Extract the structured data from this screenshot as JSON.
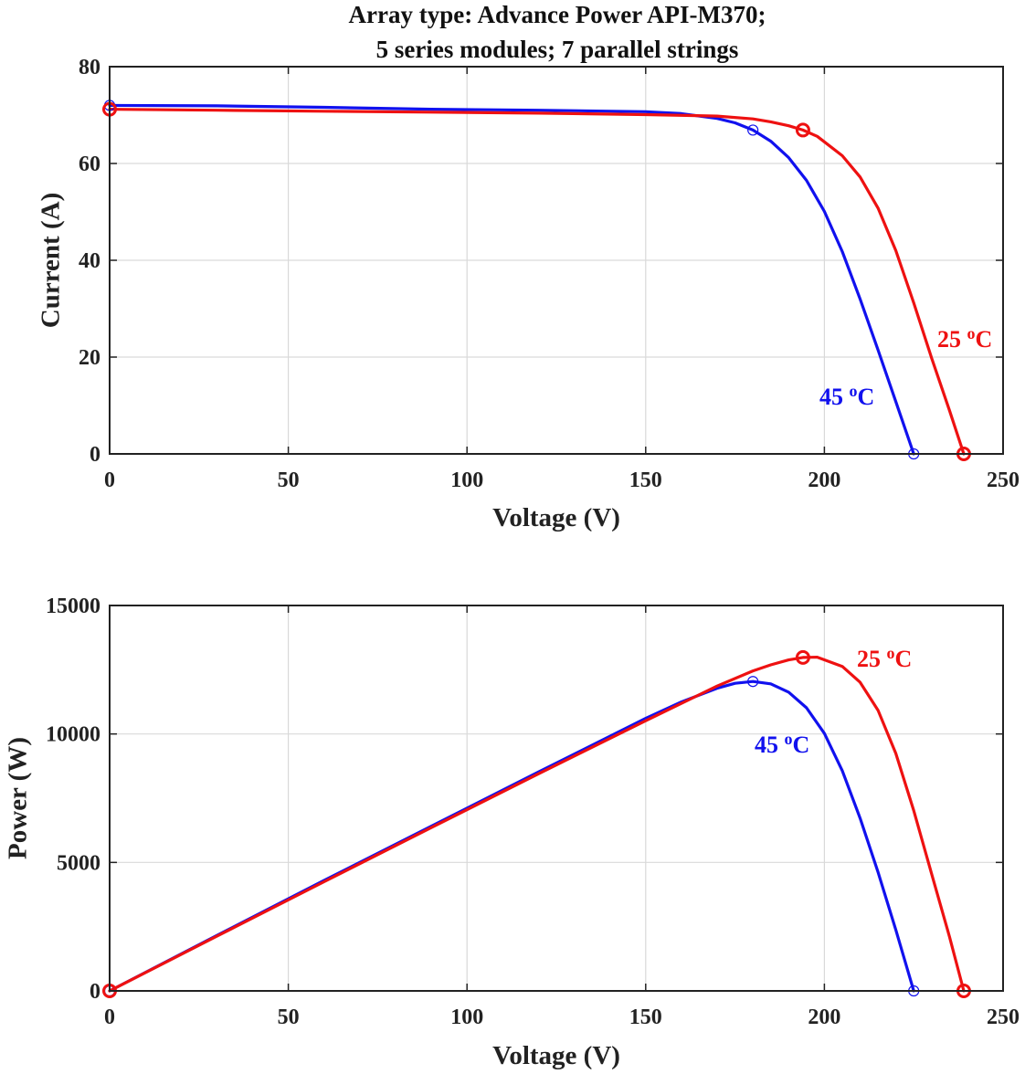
{
  "figure": {
    "title_lines": [
      "Array type: Advance Power API-M370;",
      "5 series modules; 7 parallel strings"
    ]
  },
  "colors": {
    "series_25C": "#ee1111",
    "series_45C": "#1111ee",
    "axes": "#222222",
    "grid": "#d9d9d9"
  },
  "chart_data": [
    {
      "type": "line",
      "title": "Array type: Advance Power API-M370; 5 series modules; 7 parallel strings",
      "xlabel": "Voltage (V)",
      "ylabel": "Current (A)",
      "xlim": [
        0,
        250
      ],
      "ylim": [
        0,
        80
      ],
      "xticks": [
        "0",
        "50",
        "100",
        "150",
        "200",
        "250"
      ],
      "yticks": [
        "0",
        "20",
        "40",
        "60",
        "80"
      ],
      "grid": true,
      "series": [
        {
          "name": "45 °C",
          "label_text": "45 ",
          "label_sup": "o",
          "label_unit": "C",
          "color": "#1111ee",
          "x": [
            0,
            30,
            60,
            90,
            120,
            150,
            160,
            170,
            175,
            180,
            185,
            190,
            195,
            200,
            205,
            210,
            215,
            220,
            225
          ],
          "y": [
            72.0,
            71.9,
            71.6,
            71.2,
            71.0,
            70.7,
            70.3,
            69.3,
            68.4,
            66.9,
            64.6,
            61.2,
            56.5,
            50.1,
            41.8,
            32.0,
            21.5,
            10.8,
            0
          ],
          "markers": [
            [
              0,
              72.0
            ],
            [
              180,
              66.9
            ],
            [
              225,
              0
            ]
          ]
        },
        {
          "name": "25 °C",
          "label_text": "25 ",
          "label_sup": "o",
          "label_unit": "C",
          "color": "#ee1111",
          "x": [
            0,
            30,
            60,
            90,
            120,
            150,
            170,
            180,
            185,
            190,
            194,
            198,
            205,
            210,
            215,
            220,
            225,
            230,
            235,
            239
          ],
          "y": [
            71.2,
            71.0,
            70.8,
            70.6,
            70.4,
            70.1,
            69.8,
            69.2,
            68.6,
            67.8,
            66.9,
            65.6,
            61.6,
            57.2,
            50.8,
            42.0,
            31.2,
            19.8,
            9.0,
            0
          ],
          "markers": [
            [
              0,
              71.2
            ],
            [
              194,
              66.9
            ],
            [
              239,
              0
            ]
          ]
        }
      ]
    },
    {
      "type": "line",
      "xlabel": "Voltage (V)",
      "ylabel": "Power (W)",
      "xlim": [
        0,
        250
      ],
      "ylim": [
        0,
        15000
      ],
      "xticks": [
        "0",
        "50",
        "100",
        "150",
        "200",
        "250"
      ],
      "yticks": [
        "0",
        "5000",
        "10000",
        "15000"
      ],
      "grid": true,
      "series": [
        {
          "name": "45 °C",
          "label_text": "45 ",
          "label_sup": "o",
          "label_unit": "C",
          "color": "#1111ee",
          "x": [
            0,
            30,
            60,
            90,
            120,
            150,
            160,
            170,
            175,
            180,
            185,
            190,
            195,
            200,
            205,
            210,
            215,
            220,
            225
          ],
          "y": [
            0,
            2157,
            4296,
            6408,
            8520,
            10605,
            11248,
            11781,
            11970,
            12042,
            11951,
            11628,
            11018,
            10020,
            8569,
            6720,
            4623,
            2376,
            0
          ],
          "markers": [
            [
              0,
              0
            ],
            [
              180,
              12042
            ],
            [
              225,
              0
            ]
          ]
        },
        {
          "name": "25 °C",
          "label_text": "25 ",
          "label_sup": "o",
          "label_unit": "C",
          "color": "#ee1111",
          "x": [
            0,
            30,
            60,
            90,
            120,
            150,
            170,
            180,
            185,
            190,
            194,
            198,
            205,
            210,
            215,
            220,
            225,
            230,
            235,
            239
          ],
          "y": [
            0,
            2130,
            4248,
            6354,
            8448,
            10515,
            11866,
            12456,
            12691,
            12882,
            12979,
            12989,
            12628,
            12012,
            10922,
            9240,
            7020,
            4554,
            2115,
            0
          ],
          "markers": [
            [
              0,
              0
            ],
            [
              194,
              12979
            ],
            [
              239,
              0
            ]
          ]
        }
      ]
    }
  ]
}
